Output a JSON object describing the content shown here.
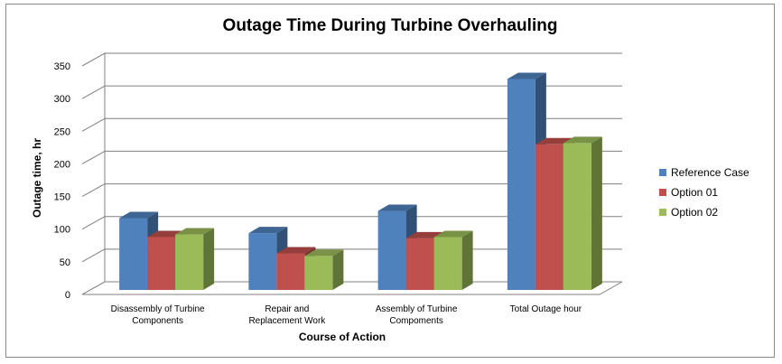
{
  "chart_data": {
    "type": "bar",
    "title": "Outage Time During Turbine Overhauling",
    "xlabel": "Course of Action",
    "ylabel": "Outage time, hr",
    "ylim": [
      0,
      350
    ],
    "yticks": [
      0,
      50,
      100,
      150,
      200,
      250,
      300,
      350
    ],
    "categories": [
      [
        "Disassembly of Turbine",
        "Components"
      ],
      [
        "Repair and",
        "Replacement Work"
      ],
      [
        "Assembly of Turbine",
        "Compoments"
      ],
      [
        "Total Outage hour"
      ]
    ],
    "series": [
      {
        "name": "Reference Case",
        "color": "#4f81bd",
        "values": [
          110,
          87,
          121,
          323
        ]
      },
      {
        "name": "Option 01",
        "color": "#c0504d",
        "values": [
          81,
          56,
          79,
          223
        ]
      },
      {
        "name": "Option 02",
        "color": "#9bbb59",
        "values": [
          85,
          52,
          81,
          225
        ]
      }
    ],
    "grid": true,
    "legend_position": "right",
    "style": "3d-clustered-column"
  }
}
